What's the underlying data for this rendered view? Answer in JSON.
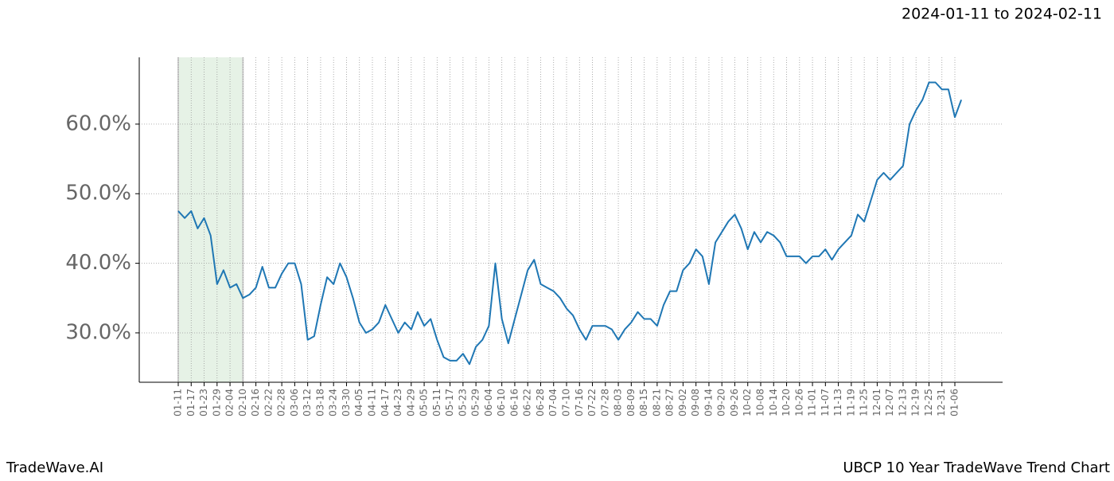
{
  "chart_data": {
    "type": "line",
    "title": "2024-01-11 to 2024-02-11",
    "footer_left": "TradeWave.AI",
    "footer_right": "UBCP 10 Year TradeWave Trend Chart",
    "categories": [
      "01-11",
      null,
      "01-17",
      null,
      "01-23",
      null,
      "01-29",
      null,
      "02-04",
      null,
      "02-10",
      null,
      "02-16",
      null,
      "02-22",
      null,
      "02-28",
      null,
      "03-06",
      null,
      "03-12",
      null,
      "03-18",
      null,
      "03-24",
      null,
      "03-30",
      null,
      "04-05",
      null,
      "04-11",
      null,
      "04-17",
      null,
      "04-23",
      null,
      "04-29",
      null,
      "05-05",
      null,
      "05-11",
      null,
      "05-17",
      null,
      "05-23",
      null,
      "05-29",
      null,
      "06-04",
      null,
      "06-10",
      null,
      "06-16",
      null,
      "06-22",
      null,
      "06-28",
      null,
      "07-04",
      null,
      "07-10",
      null,
      "07-16",
      null,
      "07-22",
      null,
      "07-28",
      null,
      "08-03",
      null,
      "08-09",
      null,
      "08-15",
      null,
      "08-21",
      null,
      "08-27",
      null,
      "09-02",
      null,
      "09-08",
      null,
      "09-14",
      null,
      "09-20",
      null,
      "09-26",
      null,
      "10-02",
      null,
      "10-08",
      null,
      "10-14",
      null,
      "10-20",
      null,
      "10-26",
      null,
      "11-01",
      null,
      "11-07",
      null,
      "11-13",
      null,
      "11-19",
      null,
      "11-25",
      null,
      "12-01",
      null,
      "12-07",
      null,
      "12-13",
      null,
      "12-19",
      null,
      "12-25",
      null,
      "12-31",
      null,
      "01-06",
      null
    ],
    "series": [
      {
        "name": "UBCP",
        "color": "#1f77b4",
        "values": [
          47.5,
          46.5,
          47.5,
          45,
          46.5,
          44,
          37,
          39,
          36.5,
          37,
          35,
          35.5,
          36.5,
          39.5,
          36.5,
          36.5,
          38.5,
          40,
          40,
          37,
          29,
          29.5,
          34,
          38,
          37,
          40,
          38,
          35,
          31.5,
          30,
          30.5,
          31.5,
          34,
          32,
          30,
          31.5,
          30.5,
          33,
          31,
          32,
          29,
          26.5,
          26,
          26,
          27,
          25.5,
          28,
          29,
          31,
          40,
          32,
          28.5,
          32,
          35.5,
          39,
          40.5,
          37,
          36.5,
          36,
          35,
          33.5,
          32.5,
          30.5,
          29,
          31,
          31,
          31,
          30.5,
          29,
          30.5,
          31.5,
          33,
          32,
          32,
          31,
          34,
          36,
          36,
          39,
          40,
          42,
          41,
          37,
          43,
          44.5,
          46,
          47,
          45,
          42,
          44.5,
          43,
          44.5,
          44,
          43,
          41,
          41,
          41,
          40,
          41,
          41,
          42,
          40.5,
          42,
          43,
          44,
          47,
          46,
          49,
          52,
          53,
          52,
          53,
          54,
          60,
          62,
          63.5,
          66,
          66,
          65,
          65,
          61,
          63.5
        ]
      }
    ],
    "shade": {
      "from": "01-11",
      "to": "02-10",
      "color": "#e6f2e6"
    },
    "ylim": [
      22.9,
      69.6
    ],
    "yticks": [
      {
        "value": 30,
        "label": "30.0%"
      },
      {
        "value": 40,
        "label": "40.0%"
      },
      {
        "value": 50,
        "label": "50.0%"
      },
      {
        "value": 60,
        "label": "60.0%"
      }
    ],
    "grid": true
  }
}
